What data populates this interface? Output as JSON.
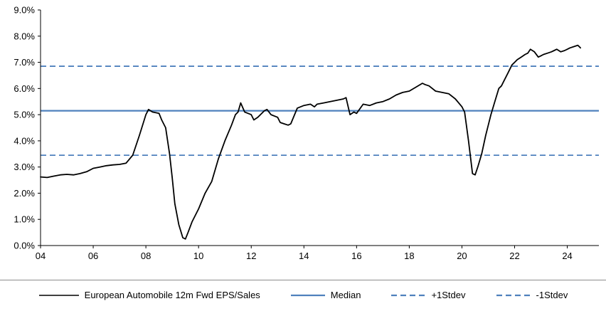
{
  "chart_data": {
    "type": "line",
    "xlim": [
      2004,
      2025.2
    ],
    "ylim": [
      0,
      9
    ],
    "grid": false,
    "x_ticks": {
      "values": [
        2004,
        2006,
        2008,
        2010,
        2012,
        2014,
        2016,
        2018,
        2020,
        2022,
        2024
      ],
      "labels": [
        "04",
        "06",
        "08",
        "10",
        "12",
        "14",
        "16",
        "18",
        "20",
        "22",
        "24"
      ]
    },
    "y_ticks": {
      "values": [
        0,
        1,
        2,
        3,
        4,
        5,
        6,
        7,
        8,
        9
      ],
      "labels": [
        "0.0%",
        "1.0%",
        "2.0%",
        "3.0%",
        "4.0%",
        "5.0%",
        "6.0%",
        "7.0%",
        "8.0%",
        "9.0%"
      ]
    },
    "series": [
      {
        "name": "European Automobile 12m Fwd EPS/Sales",
        "color": "#000000",
        "x": [
          2004.0,
          2004.25,
          2004.5,
          2004.75,
          2005.0,
          2005.25,
          2005.5,
          2005.75,
          2006.0,
          2006.25,
          2006.5,
          2006.75,
          2007.0,
          2007.25,
          2007.5,
          2007.75,
          2008.0,
          2008.1,
          2008.25,
          2008.5,
          2008.6,
          2008.75,
          2008.9,
          2009.0,
          2009.1,
          2009.25,
          2009.4,
          2009.5,
          2009.6,
          2009.75,
          2010.0,
          2010.25,
          2010.5,
          2010.75,
          2011.0,
          2011.25,
          2011.4,
          2011.5,
          2011.6,
          2011.75,
          2012.0,
          2012.1,
          2012.25,
          2012.5,
          2012.6,
          2012.75,
          2013.0,
          2013.1,
          2013.25,
          2013.4,
          2013.5,
          2013.75,
          2014.0,
          2014.25,
          2014.4,
          2014.5,
          2014.75,
          2015.0,
          2015.25,
          2015.5,
          2015.6,
          2015.75,
          2015.9,
          2016.0,
          2016.25,
          2016.5,
          2016.75,
          2017.0,
          2017.25,
          2017.5,
          2017.75,
          2018.0,
          2018.25,
          2018.5,
          2018.6,
          2018.75,
          2019.0,
          2019.25,
          2019.5,
          2019.75,
          2020.0,
          2020.1,
          2020.25,
          2020.4,
          2020.5,
          2020.6,
          2020.75,
          2020.9,
          2021.0,
          2021.1,
          2021.25,
          2021.4,
          2021.5,
          2021.6,
          2021.75,
          2021.9,
          2022.0,
          2022.1,
          2022.25,
          2022.4,
          2022.5,
          2022.6,
          2022.75,
          2022.9,
          2023.0,
          2023.1,
          2023.25,
          2023.4,
          2023.5,
          2023.6,
          2023.75,
          2023.9,
          2024.0,
          2024.1,
          2024.25,
          2024.4,
          2024.5
        ],
        "y": [
          2.62,
          2.6,
          2.65,
          2.7,
          2.72,
          2.7,
          2.75,
          2.82,
          2.95,
          3.0,
          3.05,
          3.08,
          3.1,
          3.15,
          3.45,
          4.2,
          5.0,
          5.2,
          5.1,
          5.05,
          4.8,
          4.5,
          3.5,
          2.6,
          1.6,
          0.8,
          0.3,
          0.25,
          0.5,
          0.9,
          1.4,
          2.0,
          2.45,
          3.3,
          4.0,
          4.6,
          5.0,
          5.1,
          5.45,
          5.1,
          5.0,
          4.8,
          4.9,
          5.15,
          5.2,
          5.0,
          4.9,
          4.7,
          4.65,
          4.6,
          4.65,
          5.25,
          5.35,
          5.4,
          5.3,
          5.4,
          5.45,
          5.5,
          5.55,
          5.6,
          5.65,
          5.0,
          5.1,
          5.05,
          5.4,
          5.35,
          5.45,
          5.5,
          5.6,
          5.75,
          5.85,
          5.9,
          6.05,
          6.2,
          6.15,
          6.1,
          5.9,
          5.85,
          5.8,
          5.6,
          5.3,
          5.1,
          4.0,
          2.75,
          2.7,
          3.0,
          3.5,
          4.2,
          4.6,
          5.0,
          5.5,
          6.0,
          6.1,
          6.3,
          6.6,
          6.9,
          7.0,
          7.1,
          7.2,
          7.3,
          7.35,
          7.5,
          7.4,
          7.2,
          7.25,
          7.3,
          7.35,
          7.4,
          7.45,
          7.5,
          7.4,
          7.45,
          7.5,
          7.55,
          7.6,
          7.65,
          7.55
        ]
      }
    ],
    "reference_lines": [
      {
        "name": "Median",
        "value": 5.15,
        "style": "solid",
        "color": "#4F81BD"
      },
      {
        "name": "+1Stdev",
        "value": 6.85,
        "style": "dashed",
        "color": "#4F81BD"
      },
      {
        "name": "-1Stdev",
        "value": 3.45,
        "style": "dashed",
        "color": "#4F81BD"
      }
    ],
    "legend": {
      "position": "bottom",
      "items": [
        {
          "label": "European Automobile 12m Fwd EPS/Sales",
          "color": "#000000",
          "style": "solid"
        },
        {
          "label": "Median",
          "color": "#4F81BD",
          "style": "solid"
        },
        {
          "label": "+1Stdev",
          "color": "#4F81BD",
          "style": "dashed"
        },
        {
          "label": "-1Stdev",
          "color": "#4F81BD",
          "style": "dashed"
        }
      ]
    }
  }
}
